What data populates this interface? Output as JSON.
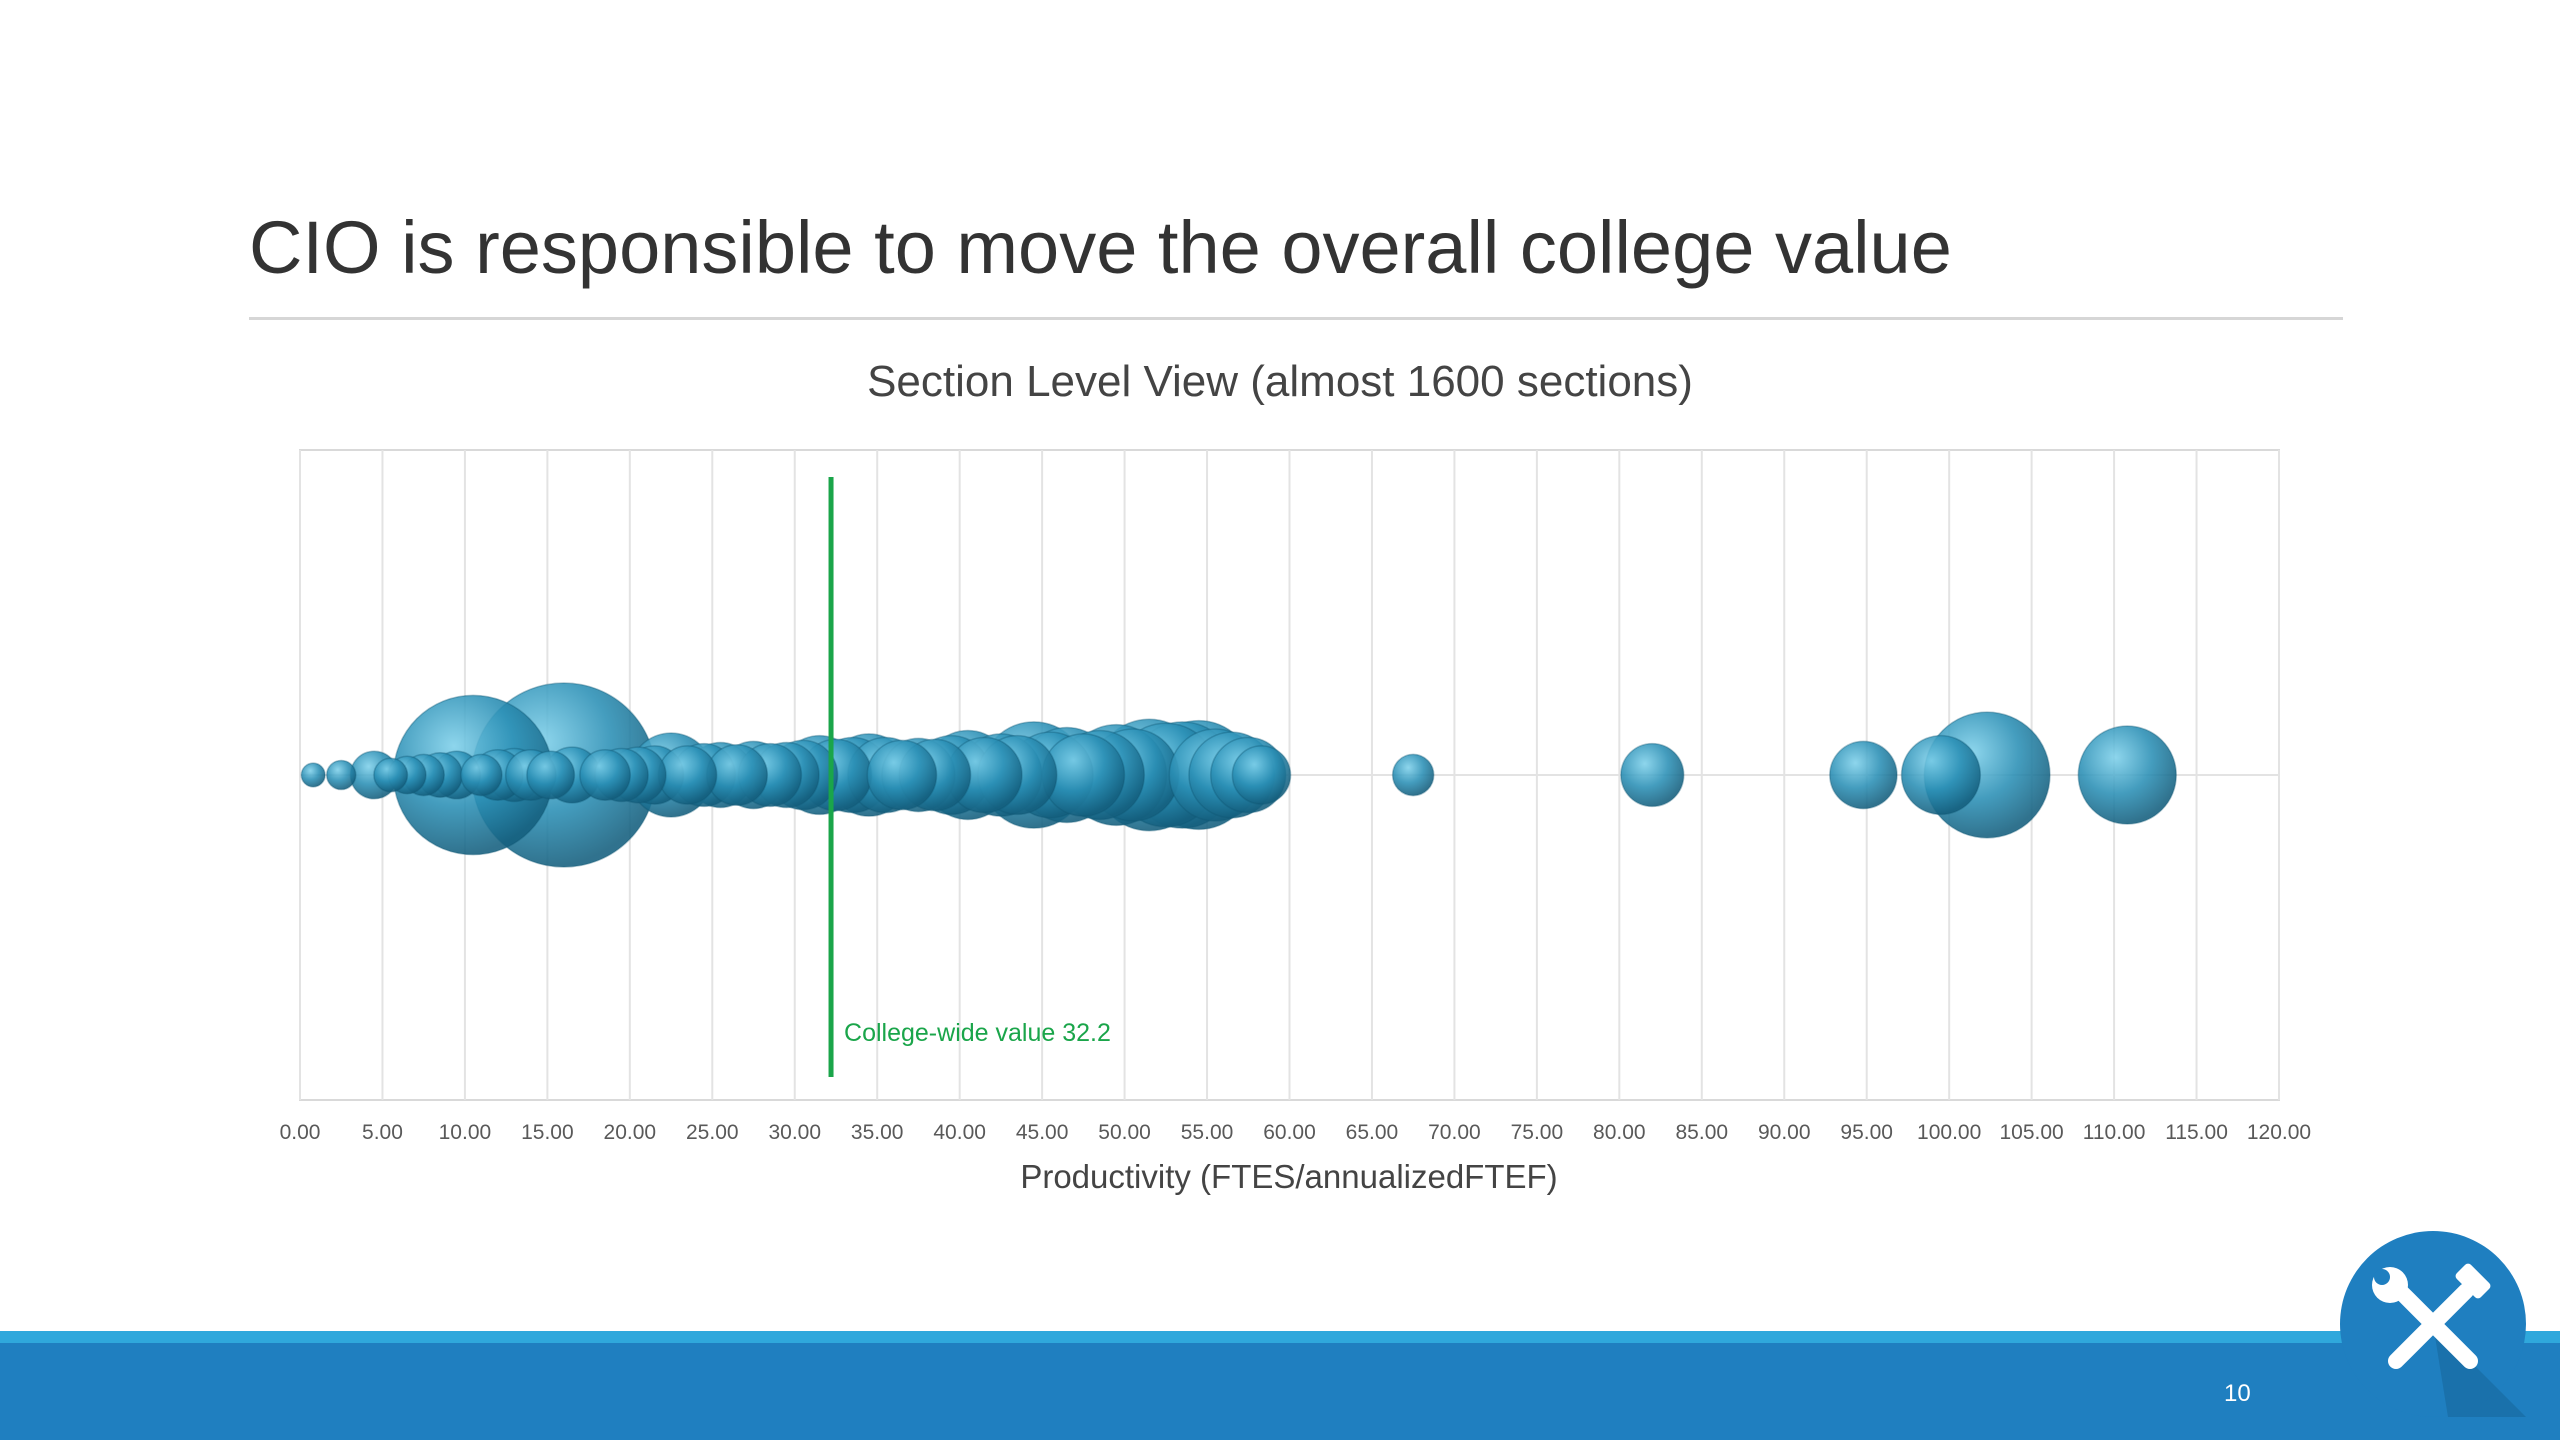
{
  "slide": {
    "title": "CIO is responsible to move the overall college value",
    "page_number": "10"
  },
  "tools_badge": {
    "icon": "tools-icon",
    "color": "#1f7fc0"
  },
  "colors": {
    "bubble": "#1e7fa3",
    "bubble_highlight": "#7ed0ea",
    "reference_line": "#1aa54a",
    "footer": "#1f7fc0",
    "footer_stripe": "#2fa8dc"
  },
  "chart_data": {
    "type": "bubble",
    "title": "Section Level View (almost 1600 sections)",
    "xlabel": "Productivity (FTES/annualizedFTEF)",
    "ylabel": "",
    "xlim": [
      0,
      120
    ],
    "x_tick_step": 5,
    "x_tick_labels": [
      "0.00",
      "5.00",
      "10.00",
      "15.00",
      "20.00",
      "25.00",
      "30.00",
      "35.00",
      "40.00",
      "45.00",
      "50.00",
      "55.00",
      "60.00",
      "65.00",
      "70.00",
      "75.00",
      "80.00",
      "85.00",
      "90.00",
      "95.00",
      "100.00",
      "105.00",
      "110.00",
      "115.00",
      "120.00"
    ],
    "grid": "vertical",
    "reference_line": {
      "x": 32.2,
      "label": "College-wide value 32.2"
    },
    "bubbles": [
      {
        "x": 0.8,
        "size": 2
      },
      {
        "x": 2.5,
        "size": 3
      },
      {
        "x": 4.5,
        "size": 8
      },
      {
        "x": 5.5,
        "size": 4
      },
      {
        "x": 6.5,
        "size": 5
      },
      {
        "x": 7.5,
        "size": 6
      },
      {
        "x": 8.5,
        "size": 7
      },
      {
        "x": 9.5,
        "size": 8
      },
      {
        "x": 10.5,
        "size": 90
      },
      {
        "x": 11.0,
        "size": 6
      },
      {
        "x": 12.0,
        "size": 9
      },
      {
        "x": 13.0,
        "size": 10
      },
      {
        "x": 14.0,
        "size": 9
      },
      {
        "x": 15.2,
        "size": 8
      },
      {
        "x": 16.0,
        "size": 120
      },
      {
        "x": 16.5,
        "size": 11
      },
      {
        "x": 18.5,
        "size": 9
      },
      {
        "x": 19.5,
        "size": 10
      },
      {
        "x": 20.5,
        "size": 11
      },
      {
        "x": 21.5,
        "size": 12
      },
      {
        "x": 22.5,
        "size": 25
      },
      {
        "x": 23.5,
        "size": 12
      },
      {
        "x": 24.5,
        "size": 14
      },
      {
        "x": 25.5,
        "size": 15
      },
      {
        "x": 26.5,
        "size": 13
      },
      {
        "x": 27.5,
        "size": 16
      },
      {
        "x": 28.5,
        "size": 14
      },
      {
        "x": 29.5,
        "size": 15
      },
      {
        "x": 30.5,
        "size": 17
      },
      {
        "x": 31.5,
        "size": 22
      },
      {
        "x": 32.5,
        "size": 18
      },
      {
        "x": 33.5,
        "size": 20
      },
      {
        "x": 34.5,
        "size": 24
      },
      {
        "x": 35.5,
        "size": 20
      },
      {
        "x": 36.5,
        "size": 17
      },
      {
        "x": 37.5,
        "size": 19
      },
      {
        "x": 38.5,
        "size": 18
      },
      {
        "x": 39.5,
        "size": 22
      },
      {
        "x": 40.5,
        "size": 28
      },
      {
        "x": 41.5,
        "size": 20
      },
      {
        "x": 42.5,
        "size": 24
      },
      {
        "x": 43.5,
        "size": 22
      },
      {
        "x": 44.5,
        "size": 40
      },
      {
        "x": 45.5,
        "size": 26
      },
      {
        "x": 46.5,
        "size": 32
      },
      {
        "x": 47.5,
        "size": 24
      },
      {
        "x": 48.5,
        "size": 28
      },
      {
        "x": 49.5,
        "size": 36
      },
      {
        "x": 50.5,
        "size": 30
      },
      {
        "x": 51.5,
        "size": 44
      },
      {
        "x": 52.5,
        "size": 38
      },
      {
        "x": 53.5,
        "size": 40
      },
      {
        "x": 54.5,
        "size": 42
      },
      {
        "x": 55.5,
        "size": 30
      },
      {
        "x": 56.5,
        "size": 26
      },
      {
        "x": 57.5,
        "size": 20
      },
      {
        "x": 58.3,
        "size": 12
      },
      {
        "x": 67.5,
        "size": 6
      },
      {
        "x": 82.0,
        "size": 14
      },
      {
        "x": 94.8,
        "size": 16
      },
      {
        "x": 99.5,
        "size": 22
      },
      {
        "x": 102.3,
        "size": 56
      },
      {
        "x": 110.8,
        "size": 34
      }
    ]
  }
}
